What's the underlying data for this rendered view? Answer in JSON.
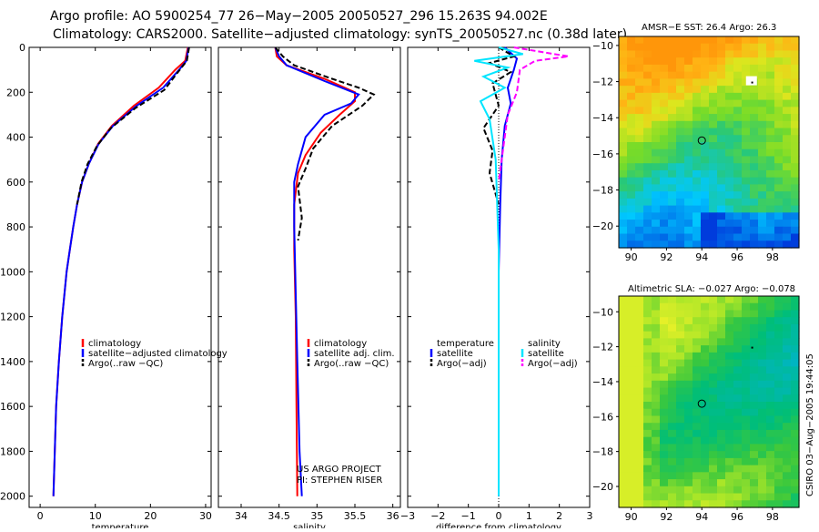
{
  "header": {
    "line1": "Argo profile: AO 5900254_77 26−May−2005 20050527_296 15.263S 94.002E",
    "line2": "Climatology: CARS2000. Satellite−adjusted climatology: synTS_20050527.nc (0.38d later)"
  },
  "colors": {
    "climatology": "#ff0000",
    "satellite": "#0000ff",
    "argo": "#000000",
    "sal_diff": "#00e5ff",
    "argo_sal": "#ff00ff"
  },
  "chart_data": [
    {
      "id": "temperature",
      "type": "line",
      "xlabel": "temperature",
      "xlim": [
        -2,
        31
      ],
      "xticks": [
        0,
        10,
        20,
        30
      ],
      "ylim": [
        0,
        2050
      ],
      "yticks": [
        0,
        200,
        400,
        600,
        800,
        1000,
        1200,
        1400,
        1600,
        1800,
        2000
      ],
      "series": [
        {
          "name": "climatology",
          "color": "#ff0000",
          "dash": false,
          "x": [
            26.8,
            26.3,
            24.5,
            21.5,
            17.0,
            13.0,
            10.5,
            8.8,
            7.6,
            6.7,
            6.0,
            5.4,
            4.8,
            4.0,
            3.4,
            2.9,
            2.4
          ],
          "y": [
            0,
            60,
            100,
            180,
            260,
            350,
            430,
            520,
            600,
            700,
            800,
            900,
            1000,
            1200,
            1400,
            1600,
            2000
          ]
        },
        {
          "name": "satellite−adjusted climatology",
          "color": "#0000ff",
          "dash": false,
          "x": [
            26.9,
            26.5,
            25.2,
            22.3,
            17.5,
            13.2,
            10.6,
            8.8,
            7.6,
            6.7,
            6.0,
            5.4,
            4.8,
            4.0,
            3.4,
            2.9,
            2.4
          ],
          "y": [
            0,
            60,
            100,
            180,
            260,
            350,
            430,
            520,
            600,
            700,
            800,
            900,
            1000,
            1200,
            1400,
            1600,
            2000
          ]
        },
        {
          "name": "Argo(..raw −QC)",
          "color": "#000000",
          "dash": true,
          "x": [
            27.0,
            26.6,
            25.0,
            22.5,
            17.3,
            12.8,
            10.3,
            8.6,
            7.5,
            6.7
          ],
          "y": [
            0,
            60,
            110,
            190,
            270,
            360,
            440,
            520,
            600,
            700
          ]
        }
      ],
      "legend": [
        "climatology",
        "satellite−adjusted climatology",
        "Argo(..raw −QC)"
      ]
    },
    {
      "id": "salinity",
      "type": "line",
      "xlabel": "salinity",
      "xlim": [
        33.7,
        36.1
      ],
      "xticks": [
        34,
        34.5,
        35,
        35.5,
        36
      ],
      "xtick_labels": [
        "34",
        "34.5",
        "35",
        "35.5",
        "36"
      ],
      "ylim": [
        0,
        2050
      ],
      "series": [
        {
          "name": "climatology",
          "color": "#ff0000",
          "dash": false,
          "x": [
            34.45,
            34.47,
            34.6,
            35.1,
            35.5,
            35.5,
            35.3,
            35.05,
            34.85,
            34.75,
            34.7,
            34.7,
            34.72,
            34.73,
            34.74
          ],
          "y": [
            0,
            40,
            80,
            140,
            200,
            240,
            300,
            380,
            480,
            560,
            700,
            900,
            1200,
            1600,
            2000
          ]
        },
        {
          "name": "satellite adj. clim.",
          "color": "#0000ff",
          "dash": false,
          "x": [
            34.45,
            34.5,
            34.6,
            35.1,
            35.55,
            35.45,
            35.1,
            34.85,
            34.75,
            34.7,
            34.7,
            34.72,
            34.74,
            34.77,
            34.8
          ],
          "y": [
            0,
            40,
            80,
            150,
            210,
            250,
            300,
            400,
            520,
            600,
            800,
            1100,
            1400,
            1800,
            2000
          ]
        },
        {
          "name": "Argo(..raw −QC)",
          "color": "#000000",
          "dash": true,
          "x": [
            34.45,
            34.55,
            34.7,
            35.2,
            35.55,
            35.75,
            35.6,
            35.2,
            34.95,
            34.85,
            34.75,
            34.8,
            34.75
          ],
          "y": [
            0,
            40,
            80,
            140,
            180,
            210,
            260,
            350,
            450,
            540,
            620,
            760,
            860
          ]
        }
      ],
      "legend": [
        "climatology",
        "satellite adj. clim.",
        "Argo(..raw −QC)"
      ],
      "annotation": [
        "US ARGO PROJECT",
        "PI: STEPHEN RISER"
      ]
    },
    {
      "id": "difference",
      "type": "line",
      "xlabel": "difference from climatology",
      "xlim": [
        -3,
        3
      ],
      "xticks": [
        -3,
        -2,
        -1,
        0,
        1,
        2,
        3
      ],
      "xtick_labels": [
        "−3",
        "−2",
        "−1",
        "0",
        "1",
        "2",
        "3"
      ],
      "ylim": [
        0,
        2050
      ],
      "series": [
        {
          "name": "temperature satellite",
          "color": "#0000ff",
          "dash": false,
          "x": [
            0.2,
            0.6,
            0.5,
            0.3,
            0.4,
            0.2,
            0.1,
            0.05,
            0.0,
            0.0,
            0.0
          ],
          "y": [
            0,
            50,
            100,
            180,
            250,
            350,
            500,
            700,
            1000,
            1500,
            2000
          ]
        },
        {
          "name": "temperature Argo(−adj)",
          "color": "#000000",
          "dash": true,
          "x": [
            0.0,
            0.5,
            -0.3,
            0.4,
            -0.2,
            0.0,
            -0.5,
            -0.2,
            -0.3,
            0.0
          ],
          "y": [
            0,
            40,
            70,
            110,
            160,
            260,
            360,
            460,
            560,
            700
          ]
        },
        {
          "name": "salinity satellite",
          "color": "#00e5ff",
          "dash": false,
          "x": [
            0.0,
            0.8,
            -0.8,
            0.3,
            -0.5,
            0.2,
            -0.6,
            -0.3,
            -0.1,
            0.0,
            0.0
          ],
          "y": [
            0,
            30,
            60,
            90,
            130,
            180,
            240,
            320,
            500,
            900,
            2000
          ]
        },
        {
          "name": "salinity Argo(−adj)",
          "color": "#ff00ff",
          "dash": true,
          "x": [
            0.5,
            2.3,
            1.2,
            0.7,
            0.6,
            0.3,
            0.1,
            0.0
          ],
          "y": [
            0,
            40,
            60,
            100,
            200,
            300,
            500,
            600
          ]
        }
      ],
      "legend_temp": [
        "temperature",
        "satellite",
        "Argo(−adj)"
      ],
      "legend_sal": [
        "salinity",
        "satellite",
        "Argo(−adj)"
      ]
    },
    {
      "id": "sst-map",
      "type": "heatmap",
      "title": "AMSR−E SST: 26.4 Argo: 26.3",
      "xlim": [
        89.3,
        99.5
      ],
      "ylim": [
        -21.2,
        -9.5
      ],
      "xticks": [
        90,
        92,
        94,
        96,
        98
      ],
      "yticks": [
        -10,
        -12,
        -14,
        -16,
        -18,
        -20
      ],
      "ytick_labels": [
        "−10",
        "−12",
        "−14",
        "−16",
        "−18",
        "−20"
      ],
      "marker": {
        "lon": 94.0,
        "lat": -15.26
      }
    },
    {
      "id": "sla-map",
      "type": "heatmap",
      "title": "Altimetric SLA: −0.027 Argo: −0.078",
      "xlim": [
        89.3,
        99.5
      ],
      "ylim": [
        -21.2,
        -9.1
      ],
      "xticks": [
        90,
        92,
        94,
        96,
        98
      ],
      "yticks": [
        -10,
        -12,
        -14,
        -16,
        -18,
        -20
      ],
      "ytick_labels": [
        "−10",
        "−12",
        "−14",
        "−16",
        "−18",
        "−20"
      ],
      "marker": {
        "lon": 94.0,
        "lat": -15.26
      }
    }
  ],
  "footer": {
    "stamp": "CSIRO 03−Aug−2005 19:44:05"
  }
}
